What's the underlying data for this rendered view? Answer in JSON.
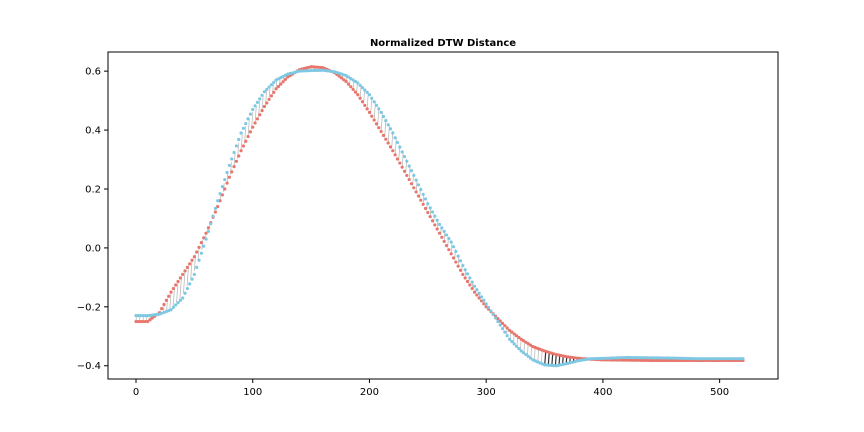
{
  "chart_data": {
    "type": "scatter",
    "title": "Normalized DTW Distance",
    "xlabel": "",
    "ylabel": "",
    "xlim": [
      -24,
      550
    ],
    "ylim": [
      -0.445,
      0.665
    ],
    "x_ticks": [
      0,
      100,
      200,
      300,
      400,
      500
    ],
    "y_ticks": [
      -0.4,
      -0.2,
      0.0,
      0.2,
      0.4,
      0.6
    ],
    "x_tick_labels": [
      "0",
      "100",
      "200",
      "300",
      "400",
      "500"
    ],
    "y_tick_labels": [
      "−0.4",
      "−0.2",
      "0.0",
      "0.2",
      "0.4",
      "0.6"
    ],
    "grid": false,
    "legend": false,
    "series": [
      {
        "color": "#e8766c",
        "points": [
          [
            0,
            -0.25
          ],
          [
            10,
            -0.25
          ],
          [
            20,
            -0.22
          ],
          [
            30,
            -0.15
          ],
          [
            40,
            -0.09
          ],
          [
            50,
            -0.03
          ],
          [
            60,
            0.05
          ],
          [
            70,
            0.14
          ],
          [
            80,
            0.24
          ],
          [
            90,
            0.33
          ],
          [
            100,
            0.41
          ],
          [
            110,
            0.48
          ],
          [
            120,
            0.54
          ],
          [
            130,
            0.58
          ],
          [
            140,
            0.605
          ],
          [
            150,
            0.615
          ],
          [
            160,
            0.612
          ],
          [
            170,
            0.595
          ],
          [
            180,
            0.565
          ],
          [
            190,
            0.52
          ],
          [
            200,
            0.46
          ],
          [
            210,
            0.395
          ],
          [
            220,
            0.33
          ],
          [
            230,
            0.26
          ],
          [
            240,
            0.19
          ],
          [
            250,
            0.12
          ],
          [
            260,
            0.05
          ],
          [
            270,
            -0.02
          ],
          [
            280,
            -0.09
          ],
          [
            290,
            -0.15
          ],
          [
            300,
            -0.2
          ],
          [
            310,
            -0.24
          ],
          [
            320,
            -0.28
          ],
          [
            330,
            -0.31
          ],
          [
            340,
            -0.335
          ],
          [
            350,
            -0.35
          ],
          [
            360,
            -0.362
          ],
          [
            370,
            -0.37
          ],
          [
            380,
            -0.375
          ],
          [
            390,
            -0.378
          ],
          [
            400,
            -0.38
          ],
          [
            420,
            -0.381
          ],
          [
            440,
            -0.382
          ],
          [
            460,
            -0.382
          ],
          [
            480,
            -0.382
          ],
          [
            500,
            -0.382
          ],
          [
            520,
            -0.382
          ]
        ]
      },
      {
        "color": "#7ec8e3",
        "points": [
          [
            0,
            -0.23
          ],
          [
            10,
            -0.23
          ],
          [
            20,
            -0.225
          ],
          [
            30,
            -0.21
          ],
          [
            40,
            -0.17
          ],
          [
            50,
            -0.09
          ],
          [
            60,
            0.03
          ],
          [
            70,
            0.16
          ],
          [
            80,
            0.28
          ],
          [
            90,
            0.39
          ],
          [
            100,
            0.47
          ],
          [
            110,
            0.53
          ],
          [
            120,
            0.57
          ],
          [
            130,
            0.59
          ],
          [
            140,
            0.6
          ],
          [
            150,
            0.602
          ],
          [
            160,
            0.603
          ],
          [
            170,
            0.598
          ],
          [
            180,
            0.585
          ],
          [
            190,
            0.56
          ],
          [
            200,
            0.52
          ],
          [
            210,
            0.46
          ],
          [
            220,
            0.39
          ],
          [
            230,
            0.31
          ],
          [
            240,
            0.23
          ],
          [
            250,
            0.15
          ],
          [
            260,
            0.08
          ],
          [
            270,
            0.02
          ],
          [
            280,
            -0.06
          ],
          [
            290,
            -0.13
          ],
          [
            300,
            -0.19
          ],
          [
            310,
            -0.25
          ],
          [
            320,
            -0.31
          ],
          [
            330,
            -0.35
          ],
          [
            340,
            -0.38
          ],
          [
            350,
            -0.397
          ],
          [
            360,
            -0.4
          ],
          [
            370,
            -0.392
          ],
          [
            380,
            -0.382
          ],
          [
            390,
            -0.376
          ],
          [
            400,
            -0.375
          ],
          [
            420,
            -0.372
          ],
          [
            440,
            -0.373
          ],
          [
            460,
            -0.374
          ],
          [
            480,
            -0.376
          ],
          [
            500,
            -0.376
          ],
          [
            520,
            -0.376
          ]
        ]
      }
    ]
  }
}
